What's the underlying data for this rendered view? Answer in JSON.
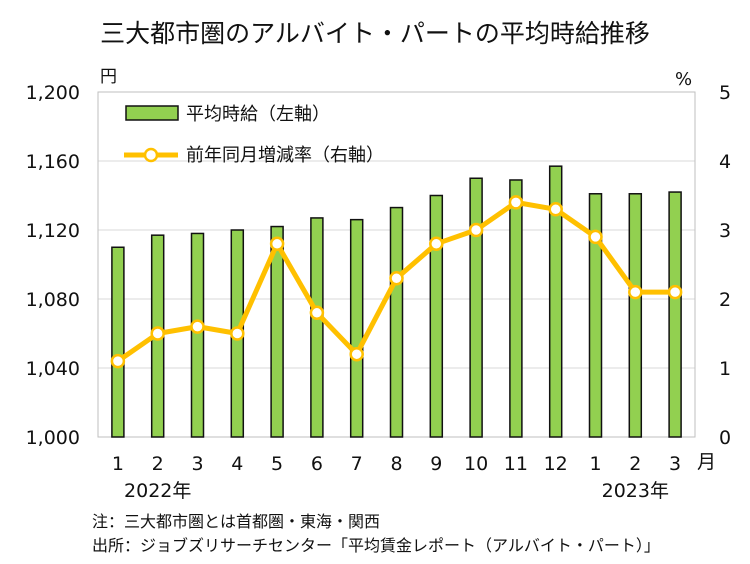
{
  "chart_data": {
    "type": "bar+line",
    "title": "三大都市圏のアルバイト・パートの平均時給推移",
    "left_unit": "円",
    "right_unit": "%",
    "categories": [
      "1",
      "2",
      "3",
      "4",
      "5",
      "6",
      "7",
      "8",
      "9",
      "10",
      "11",
      "12",
      "1",
      "2",
      "3"
    ],
    "month_suffix": "月",
    "year_labels": [
      "2022年",
      "2023年"
    ],
    "ylim_left": [
      1000,
      1200
    ],
    "yticks_left": [
      "1,000",
      "1,040",
      "1,080",
      "1,120",
      "1,160",
      "1,200"
    ],
    "ylim_right": [
      0,
      5
    ],
    "yticks_right": [
      "0",
      "1",
      "2",
      "3",
      "4",
      "5"
    ],
    "series": [
      {
        "name": "平均時給（左軸）",
        "type": "bar",
        "axis": "left",
        "color": "#92d050",
        "values": [
          1110,
          1117,
          1118,
          1120,
          1122,
          1127,
          1126,
          1133,
          1140,
          1150,
          1149,
          1157,
          1141,
          1141,
          1142
        ]
      },
      {
        "name": "前年同月増減率（右軸）",
        "type": "line",
        "axis": "right",
        "color": "#ffc000",
        "values": [
          1.1,
          1.5,
          1.6,
          1.5,
          2.8,
          1.8,
          1.2,
          2.3,
          2.8,
          3.0,
          3.4,
          3.3,
          2.9,
          2.1,
          2.1
        ]
      }
    ],
    "grid": true,
    "legend": "top-left"
  },
  "notes": [
    "注：三大都市圏とは首都圏・東海・関西",
    "出所：ジョブズリサーチセンター「平均賃金レポート（アルバイト・パート）」"
  ]
}
